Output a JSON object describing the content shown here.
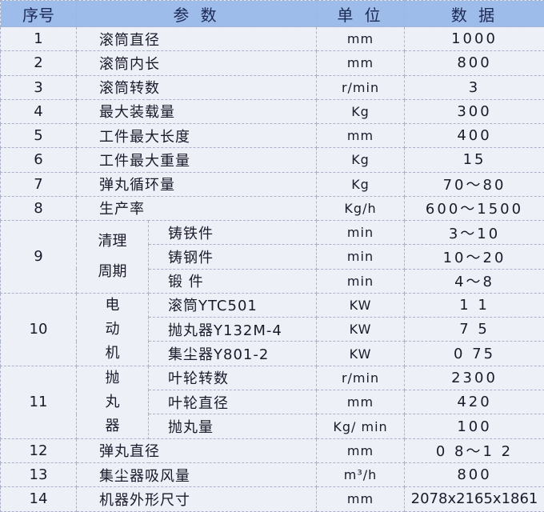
{
  "header": {
    "no": "序号",
    "param": "参 数",
    "unit": "单 位",
    "value": "数 据"
  },
  "rows": [
    {
      "no": "1",
      "param": "滚筒直径",
      "unit": "mm",
      "value": "1000"
    },
    {
      "no": "2",
      "param": "滚筒内长",
      "unit": "mm",
      "value": "800"
    },
    {
      "no": "3",
      "param": "滚筒转数",
      "unit": "r/min",
      "value": "3"
    },
    {
      "no": "4",
      "param": "最大装载量",
      "unit": "Kg",
      "value": "300"
    },
    {
      "no": "5",
      "param": "工件最大长度",
      "unit": "mm",
      "value": "400"
    },
    {
      "no": "6",
      "param": "工件最大重量",
      "unit": "Kg",
      "value": "15"
    },
    {
      "no": "7",
      "param": "弹丸循环量",
      "unit": "Kg",
      "value": "70～80"
    },
    {
      "no": "8",
      "param": "生产率",
      "unit": "Kg/h",
      "value": "600～1500"
    }
  ],
  "groups": [
    {
      "no": "9",
      "label": "清理周期",
      "subs": [
        {
          "param": "铸铁件",
          "unit": "min",
          "value": "3～10"
        },
        {
          "param": "铸钢件",
          "unit": "min",
          "value": "10～20"
        },
        {
          "param": "锻 件",
          "unit": "min",
          "value": "4～8"
        }
      ]
    },
    {
      "no": "10",
      "label": "电动机",
      "subs": [
        {
          "param": "滚筒YTC501",
          "unit": "KW",
          "value": "1 1"
        },
        {
          "param": "抛丸器Y132M-4",
          "unit": "KW",
          "value": "7 5"
        },
        {
          "param": "集尘器Y801-2",
          "unit": "KW",
          "value": "0 75"
        }
      ]
    },
    {
      "no": "11",
      "label": "抛丸器",
      "subs": [
        {
          "param": "叶轮转数",
          "unit": "r/min",
          "value": "2300"
        },
        {
          "param": "叶轮直径",
          "unit": "mm",
          "value": "420"
        },
        {
          "param": "抛丸量",
          "unit": "Kg/ min",
          "value": "100"
        }
      ]
    }
  ],
  "tail": [
    {
      "no": "12",
      "param": "弹丸直径",
      "unit": "mm",
      "value": "0 8～1 2"
    },
    {
      "no": "13",
      "param": "集尘器吸风量",
      "unit": "m³/h",
      "value": "800"
    },
    {
      "no": "14",
      "param": "机器外形尺寸",
      "unit": "mm",
      "value": "2078x2165x1861"
    }
  ],
  "colors": {
    "header_bg": "#9dbce9",
    "body_bg": "#eef0f8"
  }
}
